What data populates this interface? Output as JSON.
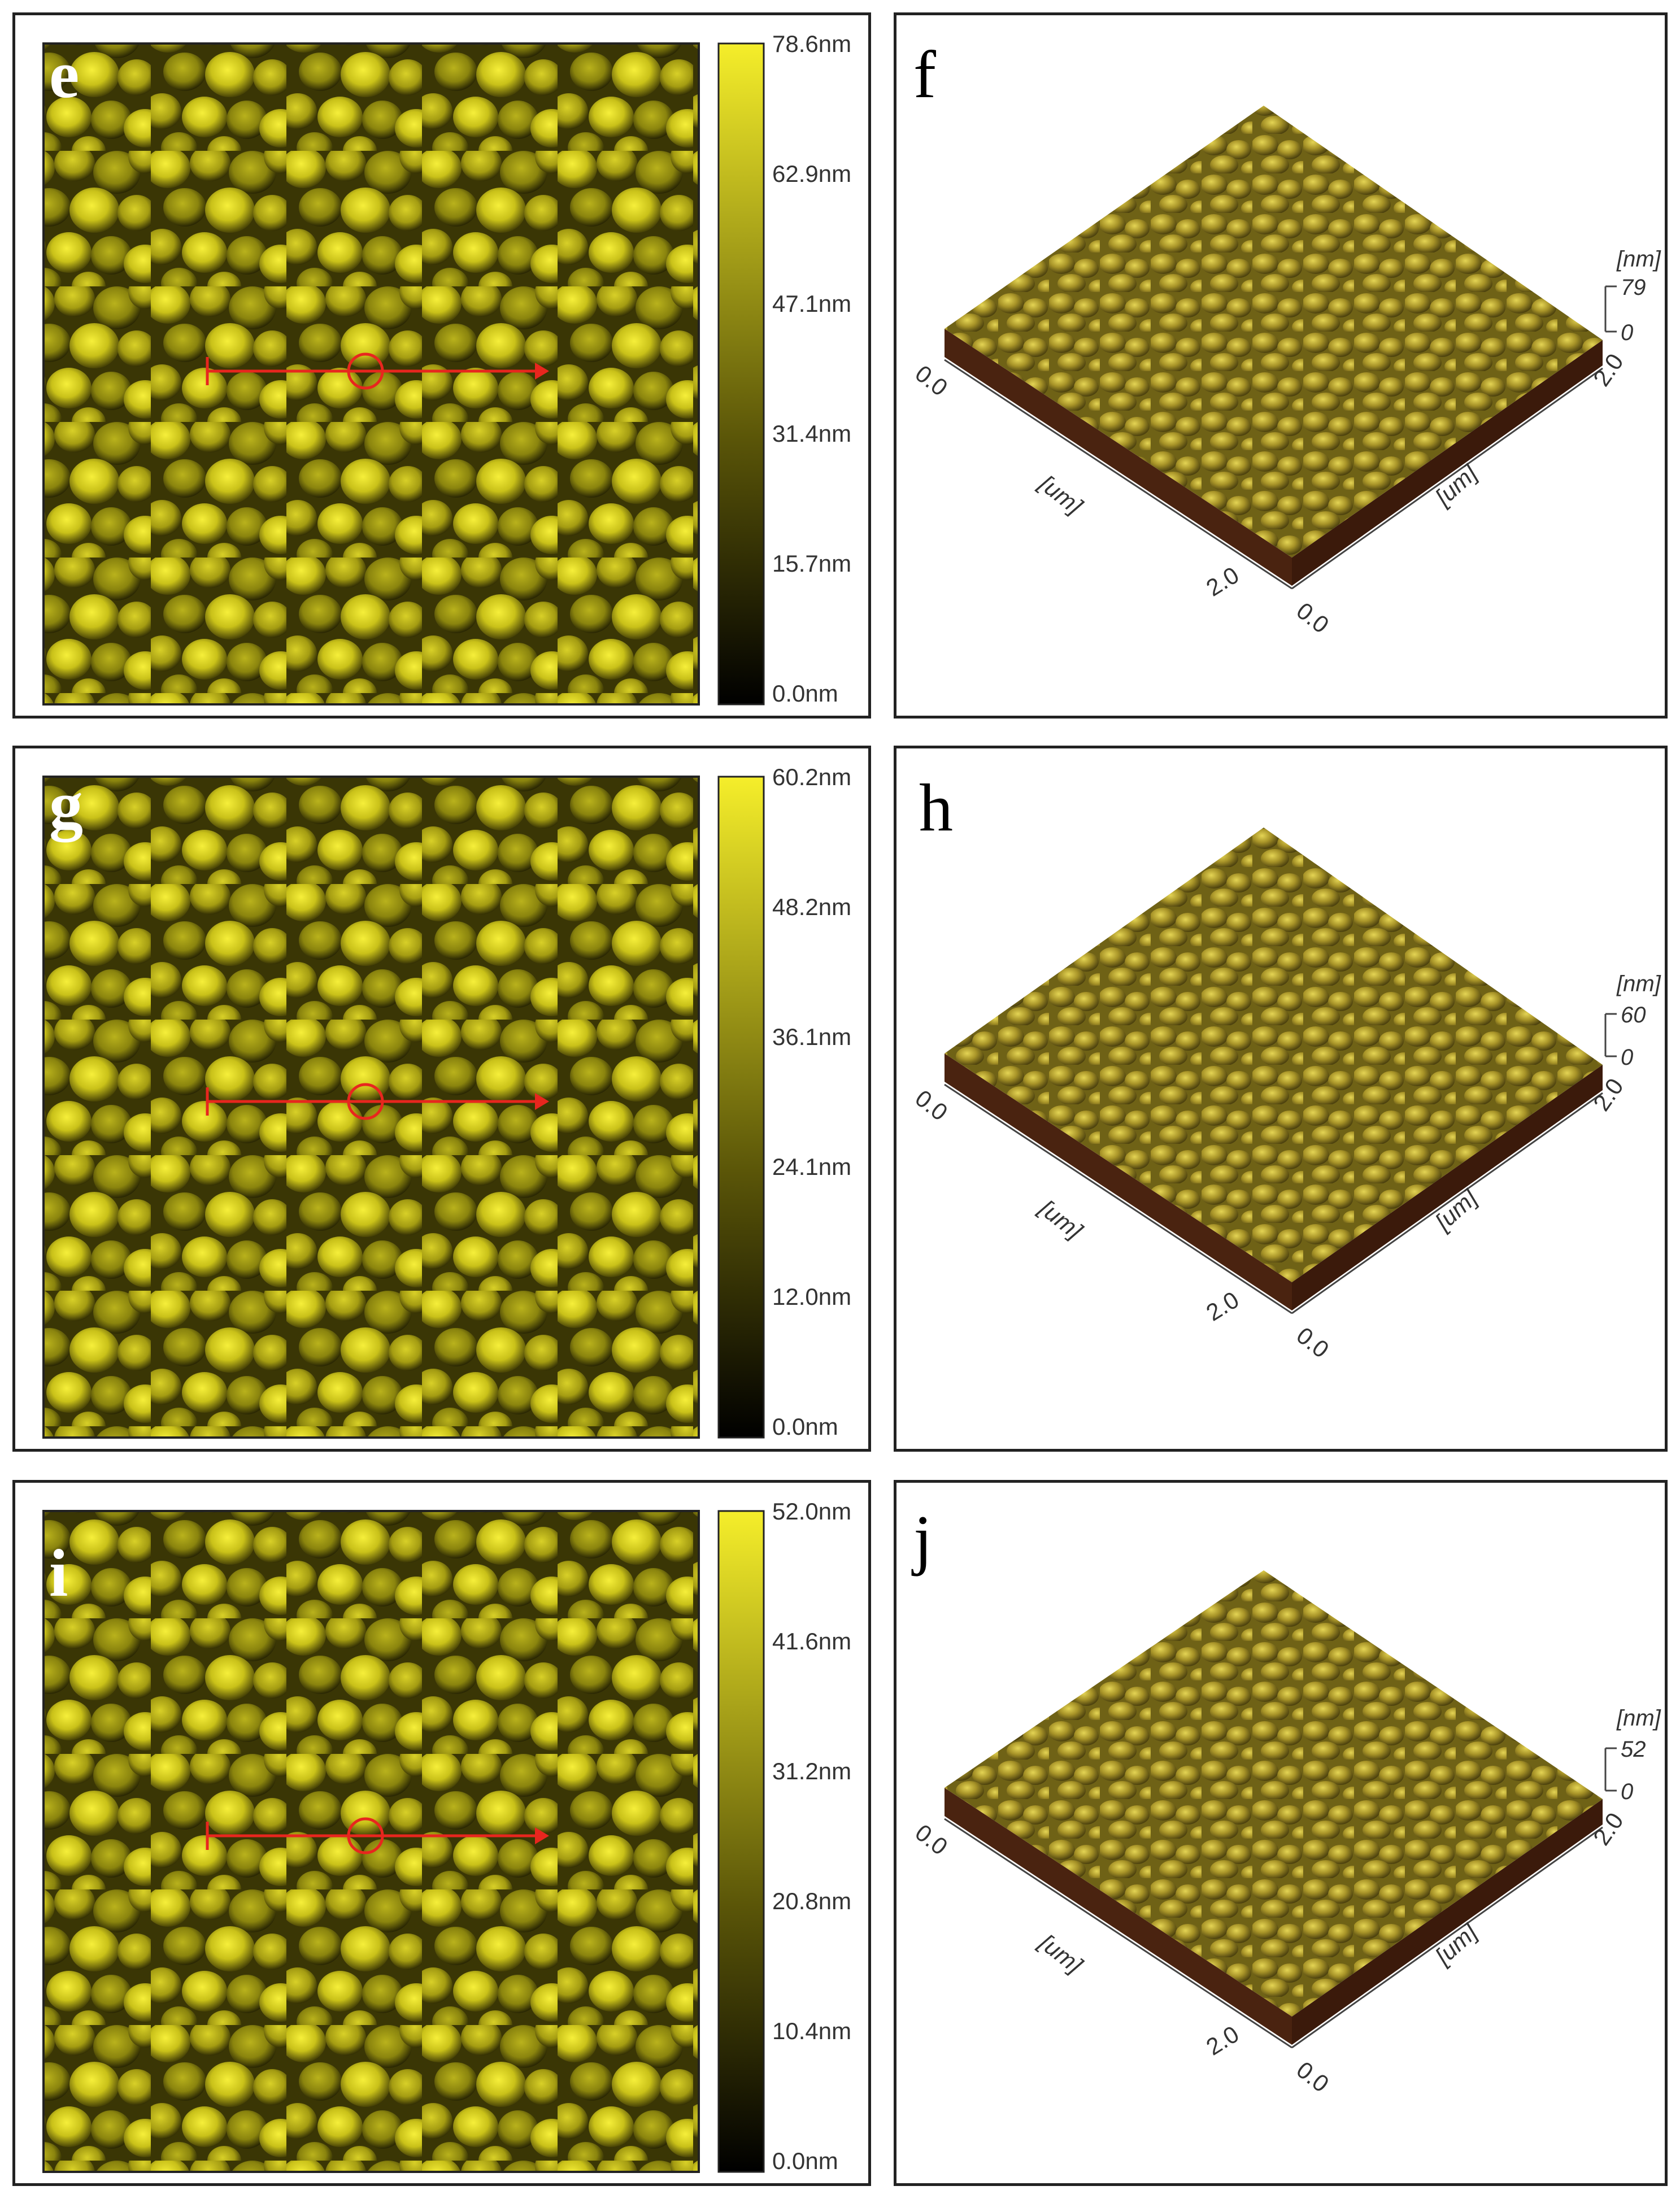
{
  "colors": {
    "afm_low": "#000000",
    "afm_high": "#f5ee2a",
    "marker": "#e8261e",
    "surface_top": "#b5a32c",
    "surface_side": "#4a2310"
  },
  "rows": [
    {
      "map": {
        "label": "e",
        "colorbar_ticks": [
          "78.6nm",
          "62.9nm",
          "47.1nm",
          "31.4nm",
          "15.7nm",
          "0.0nm"
        ]
      },
      "view3d": {
        "label": "f",
        "z_unit": "[nm]",
        "z_max": "79",
        "z_min": "0",
        "x_start": "0.0",
        "x_end": "2.0",
        "y_start": "0.0",
        "y_end": "2.0",
        "x_unit": "[um]",
        "y_unit": "[um]"
      }
    },
    {
      "map": {
        "label": "g",
        "colorbar_ticks": [
          "60.2nm",
          "48.2nm",
          "36.1nm",
          "24.1nm",
          "12.0nm",
          "0.0nm"
        ]
      },
      "view3d": {
        "label": "h",
        "z_unit": "[nm]",
        "z_max": "60",
        "z_min": "0",
        "x_start": "0.0",
        "x_end": "2.0",
        "y_start": "0.0",
        "y_end": "2.0",
        "x_unit": "[um]",
        "y_unit": "[um]"
      }
    },
    {
      "map": {
        "label": "i",
        "colorbar_ticks": [
          "52.0nm",
          "41.6nm",
          "31.2nm",
          "20.8nm",
          "10.4nm",
          "0.0nm"
        ]
      },
      "view3d": {
        "label": "j",
        "z_unit": "[nm]",
        "z_max": "52",
        "z_min": "0",
        "x_start": "0.0",
        "x_end": "2.0",
        "y_start": "0.0",
        "y_end": "2.0",
        "x_unit": "[um]",
        "y_unit": "[um]"
      }
    }
  ]
}
